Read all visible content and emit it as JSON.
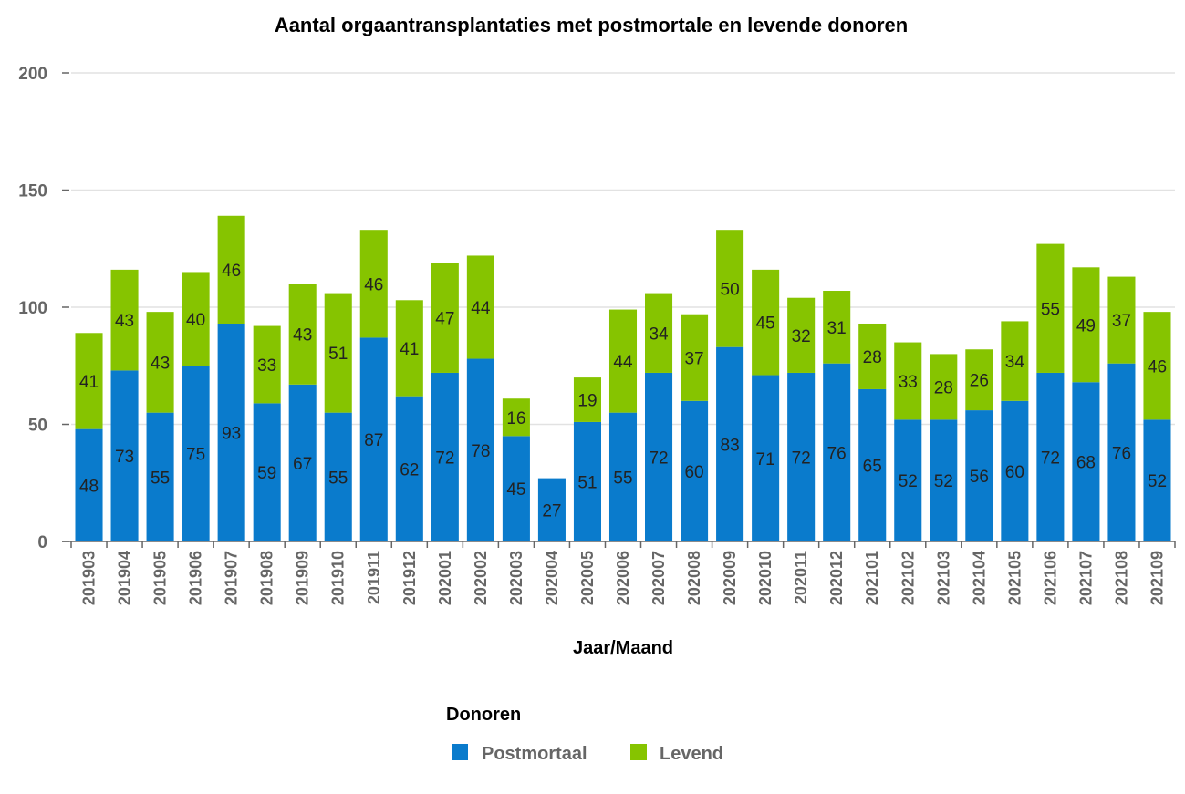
{
  "chart_data": {
    "type": "bar",
    "stacked": true,
    "title": "Aantal orgaantransplantaties met postmortale en levende donoren",
    "xlabel": "Jaar/Maand",
    "ylabel": "",
    "ylim": [
      0,
      200
    ],
    "yticks": [
      0,
      50,
      100,
      150,
      200
    ],
    "grid": true,
    "data_labels": true,
    "categories": [
      "201903",
      "201904",
      "201905",
      "201906",
      "201907",
      "201908",
      "201909",
      "201910",
      "201911",
      "201912",
      "202001",
      "202002",
      "202003",
      "202004",
      "202005",
      "202006",
      "202007",
      "202008",
      "202009",
      "202010",
      "202011",
      "202012",
      "202101",
      "202102",
      "202103",
      "202104",
      "202105",
      "202106",
      "202107",
      "202108",
      "202109"
    ],
    "series": [
      {
        "name": "Postmortaal",
        "color": "#0a7bcc",
        "values": [
          48,
          73,
          55,
          75,
          93,
          59,
          67,
          55,
          87,
          62,
          72,
          78,
          45,
          27,
          51,
          55,
          72,
          60,
          83,
          71,
          72,
          76,
          65,
          52,
          52,
          56,
          60,
          72,
          68,
          76,
          52
        ]
      },
      {
        "name": "Levend",
        "color": "#86c400",
        "values": [
          41,
          43,
          43,
          40,
          46,
          33,
          43,
          51,
          46,
          41,
          47,
          44,
          16,
          null,
          19,
          44,
          34,
          37,
          50,
          45,
          32,
          31,
          28,
          33,
          28,
          26,
          34,
          55,
          49,
          37,
          46
        ]
      }
    ],
    "legend": {
      "title": "Donoren",
      "placement": "bottom-center"
    }
  }
}
